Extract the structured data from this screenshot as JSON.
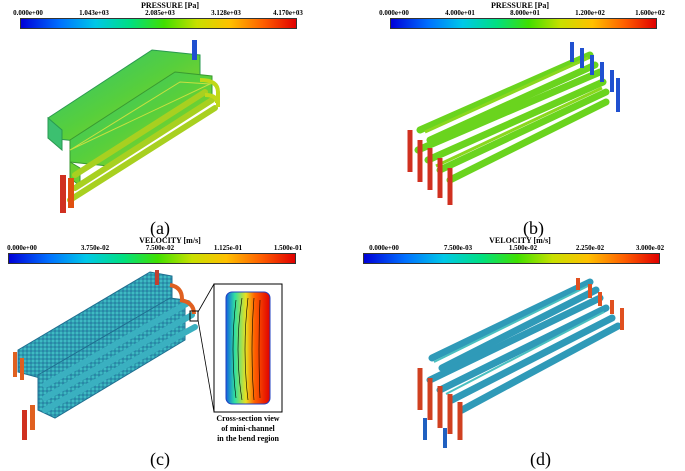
{
  "panels": [
    {
      "label": "(a)",
      "colorbar": {
        "title": "PRESSURE [Pa]",
        "ticks": [
          "0.000e+00",
          "1.043e+03",
          "2.085e+03",
          "3.128e+03",
          "4.170e+03"
        ]
      }
    },
    {
      "label": "(b)",
      "colorbar": {
        "title": "PRESSURE [Pa]",
        "ticks": [
          "0.000e+00",
          "4.000e+01",
          "8.000e+01",
          "1.200e+02",
          "1.600e+02"
        ]
      }
    },
    {
      "label": "(c)",
      "colorbar": {
        "title": "VELOCITY [m/s]",
        "ticks": [
          "0.000e+00",
          "3.750e-02",
          "7.500e-02",
          "1.125e-01",
          "1.500e-01"
        ]
      }
    },
    {
      "label": "(d)",
      "colorbar": {
        "title": "VELOCITY [m/s]",
        "ticks": [
          "0.000e+00",
          "7.500e-03",
          "1.500e-02",
          "2.250e-02",
          "3.000e-02"
        ]
      }
    }
  ],
  "inset_caption": [
    "Cross-section view",
    "of mini-channel",
    "in the bend region"
  ],
  "colors": {
    "low": "#0000d8",
    "mid": "#40e000",
    "high": "#e00000"
  }
}
